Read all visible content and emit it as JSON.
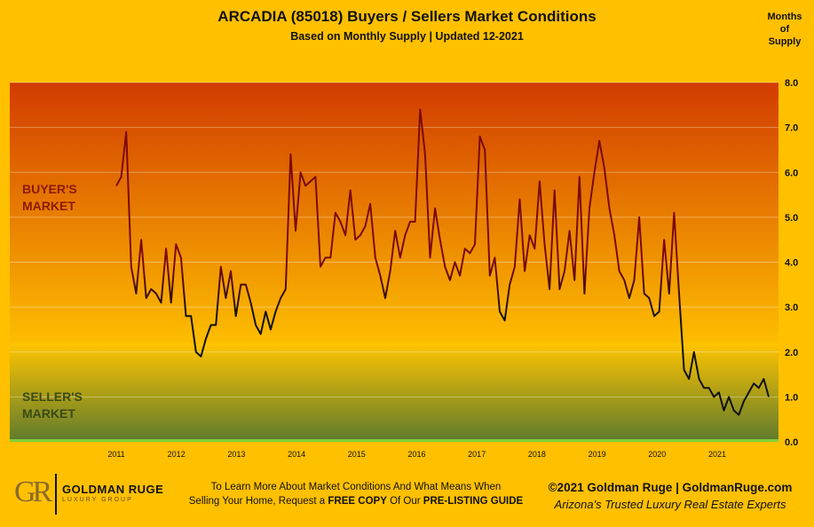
{
  "header": {
    "title": "ARCADIA (85018) Buyers / Sellers Market Conditions",
    "subtitle": "Based on Monthly Supply | Updated 12-2021",
    "unit_label": [
      "Months",
      "of",
      "Supply"
    ]
  },
  "zones": {
    "buyer": [
      "BUYER'S",
      "MARKET"
    ],
    "seller": [
      "SELLER'S",
      "MARKET"
    ]
  },
  "footer": {
    "logo_mark": "GR",
    "logo_name": "GOLDMAN RUGE",
    "logo_sub": "LUXURY GROUP",
    "promo_line1": "To Learn More About Market Conditions And What Means When",
    "promo_line2_a": "Selling Your Home, Request a ",
    "promo_line2_b": "FREE COPY",
    "promo_line2_c": " Of Our ",
    "promo_line2_d": "PRE-LISTING GUIDE",
    "copyright": "©2021 Goldman Ruge  |  GoldmanRuge.com",
    "tagline": "Arizona's Trusted Luxury Real Estate Experts"
  },
  "colors": {
    "background": "#FFC000",
    "buyer_zone_top": "#D23B00",
    "buyer_zone_bottom": "#FFC200",
    "seller_zone_top": "#FFC400",
    "seller_zone_bottom": "#5E7A2E",
    "line_high": "#7A0A0A",
    "line_low": "#111111"
  },
  "chart_data": {
    "type": "line",
    "ylim": [
      0,
      8
    ],
    "yticks": [
      "0.0",
      "1.0",
      "2.0",
      "3.0",
      "4.0",
      "5.0",
      "6.0",
      "7.0",
      "8.0"
    ],
    "y_axis_position": "right",
    "xlabels": [
      "2011",
      "2012",
      "2013",
      "2014",
      "2015",
      "2016",
      "2017",
      "2018",
      "2019",
      "2020",
      "2021"
    ],
    "x_start_year": 2011,
    "grid": true,
    "series": [
      {
        "values": [
          5.7,
          5.9,
          6.9,
          3.9,
          3.3,
          4.5,
          3.2,
          3.4,
          3.3,
          3.1,
          4.3,
          3.1,
          4.4,
          4.1,
          2.8,
          2.8,
          2.0,
          1.9,
          2.3,
          2.6,
          2.6,
          3.9,
          3.2,
          3.8,
          2.8,
          3.5,
          3.5,
          3.1,
          2.6,
          2.4,
          2.9,
          2.5,
          2.9,
          3.2,
          3.4,
          6.4,
          4.7,
          6.0,
          5.7,
          5.8,
          5.9,
          3.9,
          4.1,
          4.1,
          5.1,
          4.9,
          4.6,
          5.6,
          4.5,
          4.6,
          4.8,
          5.3,
          4.1,
          3.7,
          3.2,
          3.8,
          4.7,
          4.1,
          4.6,
          4.9,
          4.9,
          7.4,
          6.4,
          4.1,
          5.2,
          4.5,
          3.9,
          3.6,
          4.0,
          3.7,
          4.3,
          4.2,
          4.4,
          6.8,
          6.5,
          3.7,
          4.1,
          2.9,
          2.7,
          3.5,
          3.9,
          5.4,
          3.8,
          4.6,
          4.3,
          5.8,
          4.4,
          3.4,
          5.6,
          3.4,
          3.8,
          4.7,
          3.6,
          5.9,
          3.3,
          5.2,
          6.0,
          6.7,
          6.1,
          5.2,
          4.6,
          3.8,
          3.6,
          3.2,
          3.6,
          5.0,
          3.3,
          3.2,
          2.8,
          2.9,
          4.5,
          3.3,
          5.1,
          3.3,
          1.6,
          1.4,
          2.0,
          1.4,
          1.2,
          1.2,
          1.0,
          1.1,
          0.7,
          1.0,
          0.7,
          0.6,
          0.9,
          1.1,
          1.3,
          1.2,
          1.4,
          1.0
        ]
      }
    ]
  }
}
